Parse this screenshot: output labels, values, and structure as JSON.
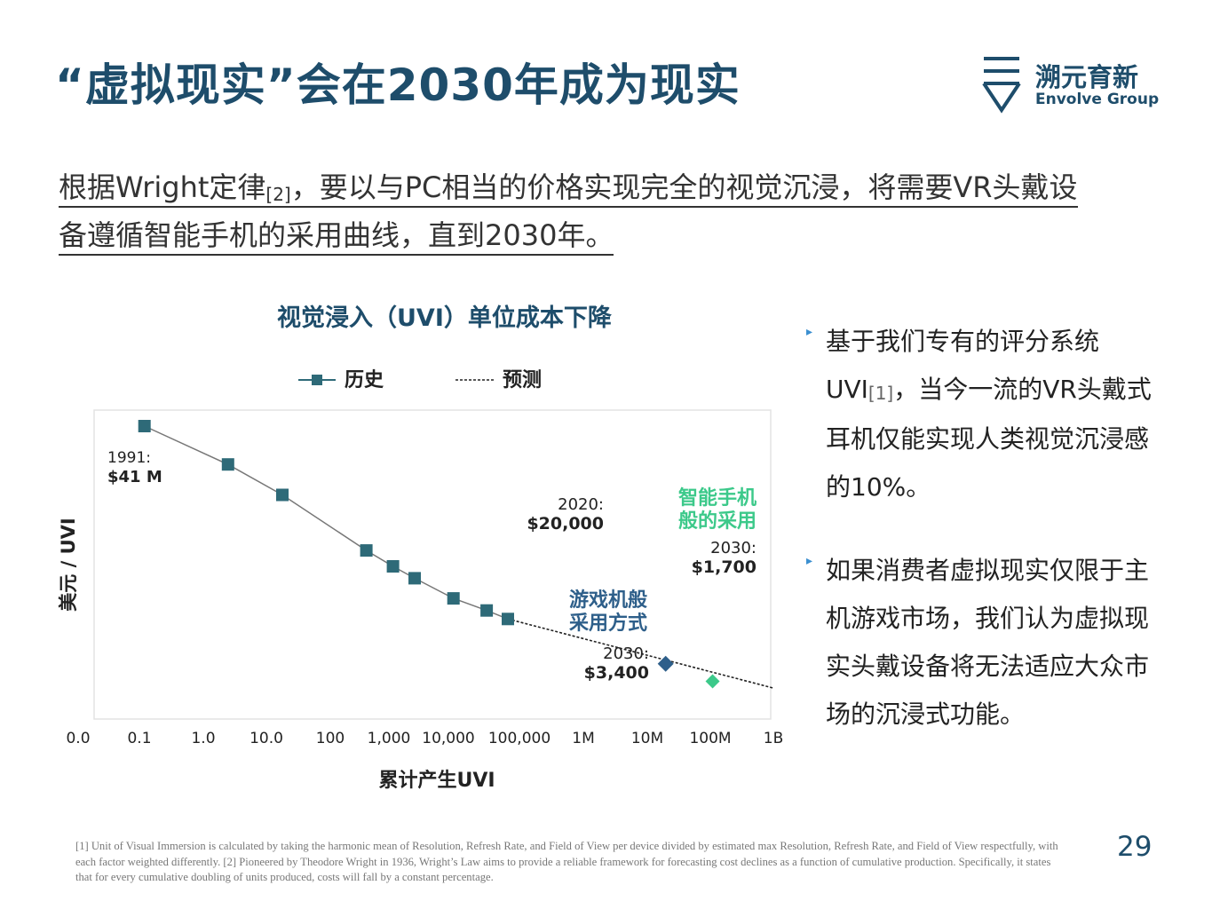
{
  "page": {
    "title": "“虚拟现实”会在2030年成为现实",
    "logo": {
      "cn": "溯元育新",
      "en": "Envolve Group"
    },
    "intro": {
      "line1_a": "根据Wright定律",
      "line1_ref": "[2]",
      "line1_b": "，要以与PC相当的价格实现完全的视觉沉浸，将需要VR头戴设",
      "line2": "备遵循智能手机的采用曲线，直到2030年。"
    },
    "bullets": [
      {
        "pre": "基于我们专有的评分系统UVI",
        "ref": "[1]",
        "post": "，当今一流的VR头戴式耳机仅能实现人类视觉沉浸感的10%。"
      },
      {
        "pre": "如果消费者虚拟现实仅限于主机游戏市场，我们认为虚拟现实头戴设备将无法适应大众市场的沉浸式功能。",
        "ref": "",
        "post": ""
      }
    ],
    "footnote": "[1] Unit of Visual Immersion is calculated by taking the harmonic mean of Resolution, Refresh Rate, and Field of View per device divided by estimated max Resolution, Refresh Rate, and Field of View respectfully, with each factor weighted differently. [2] Pioneered by Theodore Wright in 1936, Wright’s Law aims to provide a reliable framework for forecasting cost declines as a function of cumulative production. Specifically, it states that for every cumulative doubling of units produced, costs will fall by a constant percentage.",
    "page_number": "29"
  },
  "chart_data": {
    "type": "scatter",
    "title": "视觉浸入（UVI）单位成本下降",
    "xlabel": "累计产生UVI",
    "ylabel": "美元 / UVI",
    "x_scale": "log",
    "x_tick_labels": [
      "0.0",
      "0.1",
      "1.0",
      "10.0",
      "100",
      "1,000",
      "10,000",
      "100,000",
      "1M",
      "10M",
      "100M",
      "1B"
    ],
    "y_scale": "log",
    "legend": {
      "position": "top",
      "entries": [
        "历史",
        "预测"
      ]
    },
    "series": [
      {
        "name": "历史",
        "color": "#2e6a78",
        "x": [
          0.12,
          2.5,
          18,
          380,
          1000,
          2200,
          9000,
          30000,
          65000
        ],
        "y": [
          41000000,
          9000000,
          2700000,
          300000,
          160000,
          100000,
          45000,
          28000,
          20000
        ]
      },
      {
        "name": "预测",
        "color": "#222222",
        "x": [
          65000,
          1000000000
        ],
        "y": [
          20000,
          1300
        ]
      },
      {
        "name": "游戏机般采用方式",
        "color": "#2e5f8a",
        "x": [
          20000000
        ],
        "y": [
          3400
        ]
      },
      {
        "name": "智能手机般的采用",
        "color": "#3cc98a",
        "x": [
          110000000
        ],
        "y": [
          1700
        ]
      }
    ],
    "annotations": [
      {
        "id": "a1991",
        "line1": "1991:",
        "line2": "$41 M"
      },
      {
        "id": "a2020",
        "line1": "2020:",
        "line2": "$20,000"
      },
      {
        "id": "asmart",
        "line1": "智能手机",
        "line2": "般的采用"
      },
      {
        "id": "as2030",
        "line1": "2030:",
        "line2": "$1,700"
      },
      {
        "id": "aconsole",
        "line1": "游戏机般",
        "line2": "采用方式"
      },
      {
        "id": "ac2030",
        "line1": "2030:",
        "line2": "$3,400"
      }
    ]
  }
}
